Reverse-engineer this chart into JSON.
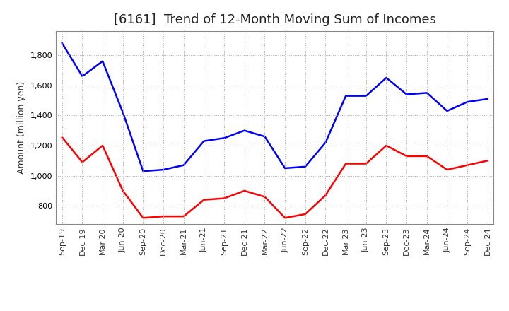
{
  "title": "[6161]  Trend of 12-Month Moving Sum of Incomes",
  "ylabel": "Amount (million yen)",
  "labels": [
    "Sep-19",
    "Dec-19",
    "Mar-20",
    "Jun-20",
    "Sep-20",
    "Dec-20",
    "Mar-21",
    "Jun-21",
    "Sep-21",
    "Dec-21",
    "Mar-22",
    "Jun-22",
    "Sep-22",
    "Dec-22",
    "Mar-23",
    "Jun-23",
    "Sep-23",
    "Dec-23",
    "Mar-24",
    "Jun-24",
    "Sep-24",
    "Dec-24"
  ],
  "ordinary_income": [
    1880,
    1660,
    1760,
    1420,
    1030,
    1040,
    1070,
    1230,
    1250,
    1300,
    1260,
    1050,
    1060,
    1220,
    1530,
    1530,
    1650,
    1540,
    1550,
    1430,
    1490,
    1510
  ],
  "net_income": [
    1255,
    1090,
    1200,
    900,
    720,
    730,
    730,
    840,
    850,
    900,
    860,
    720,
    745,
    870,
    1080,
    1080,
    1200,
    1130,
    1130,
    1040,
    1070,
    1100
  ],
  "ordinary_color": "#0000FF",
  "net_color": "#FF0000",
  "ylim_min": 680,
  "ylim_max": 1960,
  "yticks": [
    800,
    1000,
    1200,
    1400,
    1600,
    1800
  ],
  "background_color": "#FFFFFF",
  "grid_color": "#AAAAAA",
  "title_fontsize": 13,
  "axis_fontsize": 9,
  "tick_fontsize": 8,
  "legend_fontsize": 9
}
